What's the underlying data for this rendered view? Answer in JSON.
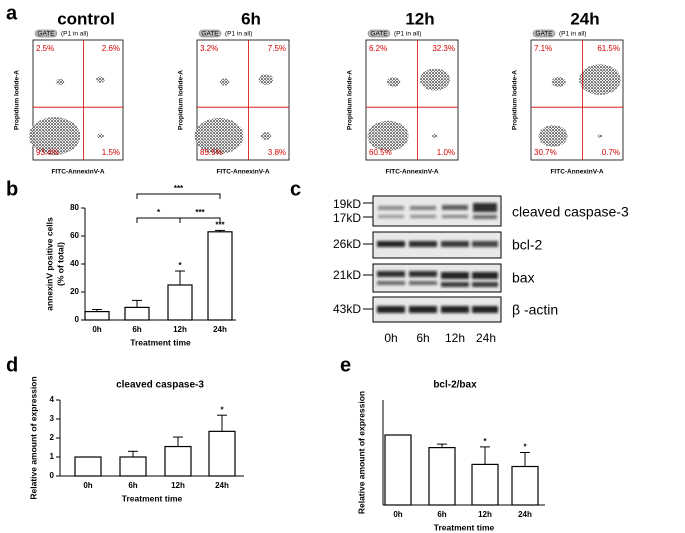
{
  "panel_labels": [
    "a",
    "b",
    "c",
    "d",
    "e"
  ],
  "chart_data": [
    {
      "type": "flow",
      "title": "control",
      "gate": "GATE",
      "gate_note": "(P1 in all)",
      "xlabel": "FITC-AnnexinV-A",
      "ylabel": "Propidium Iodide-A",
      "quadrant_values": [
        2.5,
        2.6,
        93.4,
        1.5
      ],
      "quadrant_labels": [
        "2.5%",
        "2.6%",
        "93.4%",
        "1.5%"
      ]
    },
    {
      "type": "flow",
      "title": "6h",
      "gate": "GATE",
      "gate_note": "(P1 in all)",
      "xlabel": "FITC-AnnexinV-A",
      "ylabel": "Propidium Iodide-A",
      "quadrant_values": [
        3.2,
        7.5,
        85.5,
        3.8
      ],
      "quadrant_labels": [
        "3.2%",
        "7.5%",
        "85.5%",
        "3.8%"
      ]
    },
    {
      "type": "flow",
      "title": "12h",
      "gate": "GATE",
      "gate_note": "(P1 in all)",
      "xlabel": "FITC-AnnexinV-A",
      "ylabel": "Propidium Iodide-A",
      "quadrant_values": [
        6.2,
        32.3,
        60.5,
        1.0
      ],
      "quadrant_labels": [
        "6.2%",
        "32.3%",
        "60.5%",
        "1.0%"
      ]
    },
    {
      "type": "flow",
      "title": "24h",
      "gate": "GATE",
      "gate_note": "(P1 in all)",
      "xlabel": "FITC-AnnexinV-A",
      "ylabel": "Propidium Iodide-A",
      "quadrant_values": [
        7.1,
        61.5,
        30.7,
        0.7
      ],
      "quadrant_labels": [
        "7.1%",
        "61.5%",
        "30.7%",
        "0.7%"
      ]
    },
    {
      "type": "bar",
      "ylabel": [
        "annexinV positive cells",
        "(% of total)"
      ],
      "xlabel": "Treatment time",
      "categories": [
        "0h",
        "6h",
        "12h",
        "24h"
      ],
      "values": [
        6,
        9,
        25,
        63
      ],
      "errors": [
        1.5,
        5,
        10,
        1
      ],
      "significance": [
        null,
        null,
        "*",
        "***"
      ],
      "comparisons": [
        {
          "pair": [
            "6h",
            "12h"
          ],
          "label": "*"
        },
        {
          "pair": [
            "12h",
            "24h"
          ],
          "label": "***"
        },
        {
          "pair": [
            "6h",
            "24h"
          ],
          "label": "***"
        }
      ],
      "ylim": [
        0,
        80
      ],
      "yticks": [
        0,
        20,
        40,
        60,
        80
      ]
    },
    {
      "type": "bar",
      "title": "cleaved caspase-3",
      "ylabel": [
        "Relative amount of expression"
      ],
      "xlabel": "Treatment time",
      "categories": [
        "0h",
        "6h",
        "12h",
        "24h"
      ],
      "values": [
        1,
        1.0,
        1.55,
        2.35
      ],
      "errors": [
        0,
        0.3,
        0.5,
        0.85
      ],
      "significance": [
        null,
        null,
        null,
        "*"
      ],
      "ylim": [
        0,
        4
      ],
      "yticks": [
        0,
        1,
        2,
        3,
        4
      ]
    },
    {
      "type": "bar",
      "title": "bcl-2/bax",
      "ylabel": [
        "Relative amount of expression"
      ],
      "xlabel": "Treatment time",
      "categories": [
        "0h",
        "6h",
        "12h",
        "24h"
      ],
      "values": [
        1,
        0.82,
        0.58,
        0.55
      ],
      "errors": [
        0,
        0.05,
        0.25,
        0.2
      ],
      "significance": [
        null,
        null,
        "*",
        "*"
      ],
      "ylim": [
        0,
        1.5
      ]
    }
  ],
  "blot": {
    "markers": [
      "19kD",
      "17kD",
      "26kD",
      "21kD",
      "43kD"
    ],
    "proteins": [
      "cleaved caspase-3",
      "bcl-2",
      "bax",
      "β -actin"
    ],
    "lanes": [
      "0h",
      "6h",
      "12h",
      "24h"
    ]
  }
}
